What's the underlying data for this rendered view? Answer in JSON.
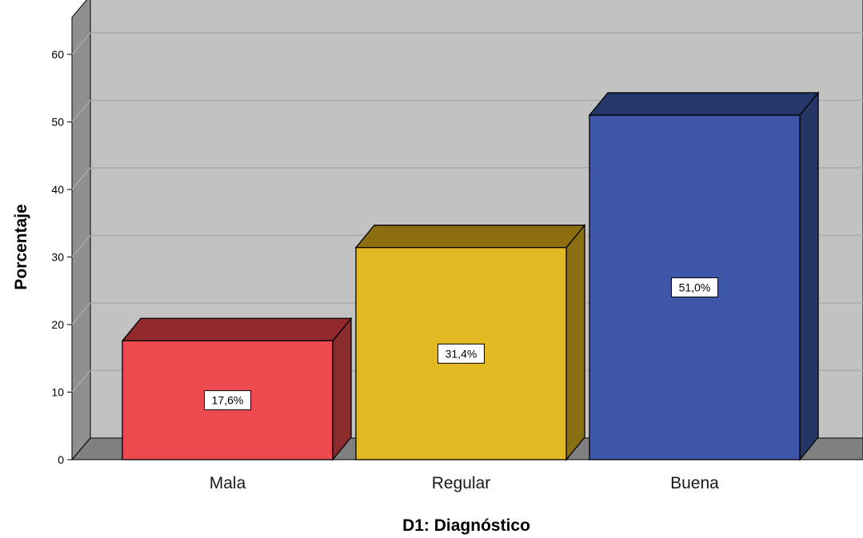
{
  "chart_data": {
    "type": "bar",
    "categories": [
      "Mala",
      "Regular",
      "Buena"
    ],
    "values": [
      17.6,
      31.4,
      51.0
    ],
    "data_labels": [
      "17,6%",
      "31,4%",
      "51,0%"
    ],
    "xlabel": "D1: Diagnóstico",
    "ylabel": "Porcentaje",
    "ylim": [
      0,
      60
    ],
    "yticks": [
      0,
      10,
      20,
      30,
      40,
      50,
      60
    ],
    "grid": true,
    "three_d": true,
    "bar_colors": [
      {
        "front": "#ec4a4f",
        "top": "#92292d",
        "side": "#8a2b2e"
      },
      {
        "front": "#e1b922",
        "top": "#8c6e10",
        "side": "#8a6e12"
      },
      {
        "front": "#3e57a8",
        "top": "#26376a",
        "side": "#253566"
      }
    ],
    "background_color": "#c2c2c2",
    "wall_color": "#8f8f8f",
    "floor_color": "#808080"
  }
}
